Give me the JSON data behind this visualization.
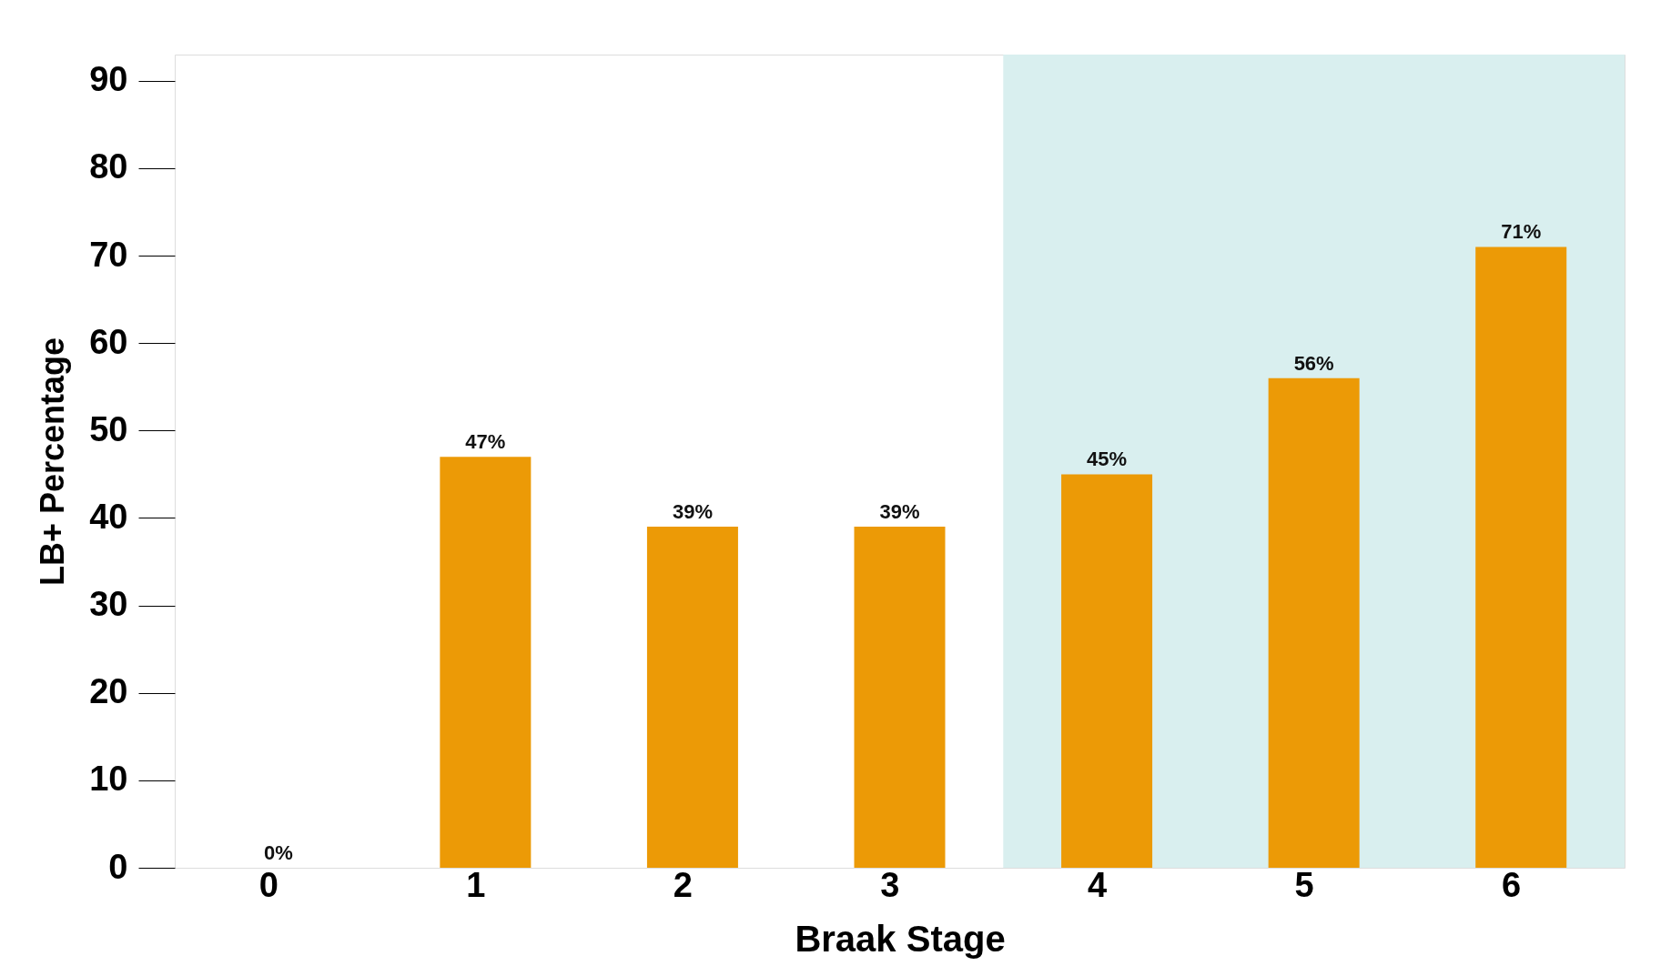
{
  "chart_data": {
    "type": "bar",
    "xlabel": "Braak Stage",
    "ylabel": "LB+ Percentage",
    "categories": [
      "0",
      "1",
      "2",
      "3",
      "4",
      "5",
      "6"
    ],
    "values": [
      0,
      47,
      39,
      39,
      45,
      56,
      71
    ],
    "value_labels": [
      "0%",
      "47%",
      "39%",
      "39%",
      "45%",
      "56%",
      "71%"
    ],
    "color": "#ec9a06",
    "ylim": [
      0,
      93
    ],
    "yticks": [
      0,
      10,
      20,
      30,
      40,
      50,
      60,
      70,
      80,
      90
    ],
    "bands": [
      {
        "axis": "x",
        "from": "4",
        "to": "6",
        "color": "#d9efef"
      }
    ],
    "grid": false
  }
}
